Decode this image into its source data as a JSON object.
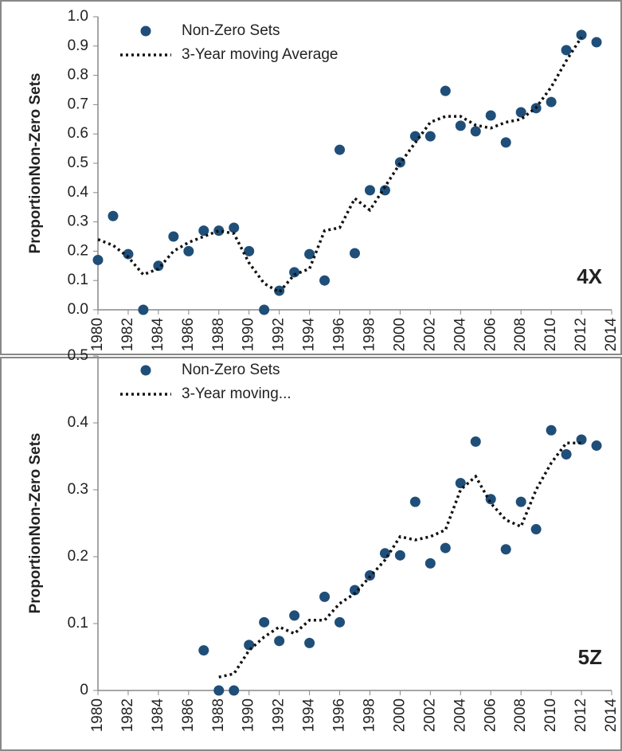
{
  "chart_data": [
    {
      "type": "scatter",
      "ylabel": "ProportionNon-Zero Sets",
      "annotation": "4X",
      "x": [
        1980,
        1981,
        1982,
        1983,
        1984,
        1985,
        1986,
        1987,
        1988,
        1989,
        1990,
        1991,
        1992,
        1993,
        1994,
        1995,
        1996,
        1997,
        1998,
        1999,
        2000,
        2001,
        2002,
        2003,
        2004,
        2005,
        2006,
        2007,
        2008,
        2009,
        2010,
        2011,
        2012,
        2013
      ],
      "xlim": [
        1980,
        2014
      ],
      "xticks": [
        1980,
        1982,
        1984,
        1986,
        1988,
        1990,
        1992,
        1994,
        1996,
        1998,
        2000,
        2002,
        2004,
        2006,
        2008,
        2010,
        2012,
        2014
      ],
      "ylim": [
        0,
        1
      ],
      "yticks": [
        {
          "value": 0,
          "label": "0.0"
        },
        0.1,
        0.2,
        0.3,
        0.4,
        0.5,
        0.6,
        0.7,
        0.8,
        0.9,
        {
          "value": 1,
          "label": "1.0"
        }
      ],
      "grid": false,
      "legend": "top-left",
      "series": [
        {
          "name": "Non-Zero Sets",
          "color": "#1f4e79",
          "mode": "markers",
          "values": [
            0.17,
            0.32,
            0.19,
            0,
            0.15,
            0.25,
            0.2,
            0.27,
            0.27,
            0.28,
            0.2,
            0,
            0.065,
            0.128,
            0.19,
            0.1,
            0.546,
            0.193,
            0.408,
            0.408,
            0.503,
            0.592,
            0.592,
            0.747,
            0.628,
            0.609,
            0.663,
            0.571,
            0.674,
            0.688,
            0.709,
            0.886,
            0.938,
            0.913
          ]
        },
        {
          "name": "3-Year moving Average",
          "color": "#111111",
          "mode": "dotted-line",
          "values": [
            0.24,
            0.22,
            0.18,
            0.12,
            0.14,
            0.2,
            0.23,
            0.25,
            0.27,
            0.26,
            0.16,
            0.09,
            0.06,
            0.12,
            0.14,
            0.27,
            0.28,
            0.38,
            0.34,
            0.42,
            0.5,
            0.57,
            0.64,
            0.66,
            0.66,
            0.63,
            0.62,
            0.64,
            0.65,
            0.69,
            0.76,
            0.85,
            0.93,
            null
          ]
        }
      ]
    },
    {
      "type": "scatter",
      "ylabel": "ProportionNon-Zero Sets",
      "annotation": "5Z",
      "x": [
        1980,
        1981,
        1982,
        1983,
        1984,
        1985,
        1986,
        1987,
        1988,
        1989,
        1990,
        1991,
        1992,
        1993,
        1994,
        1995,
        1996,
        1997,
        1998,
        1999,
        2000,
        2001,
        2002,
        2003,
        2004,
        2005,
        2006,
        2007,
        2008,
        2009,
        2010,
        2011,
        2012,
        2013
      ],
      "xlim": [
        1980,
        2014
      ],
      "xticks": [
        1980,
        1982,
        1984,
        1986,
        1988,
        1990,
        1992,
        1994,
        1996,
        1998,
        2000,
        2002,
        2004,
        2006,
        2008,
        2010,
        2012,
        2014
      ],
      "ylim": [
        0,
        0.5
      ],
      "yticks": [
        0,
        0.1,
        0.2,
        0.3,
        0.4,
        0.5
      ],
      "grid": false,
      "legend": "top-left",
      "series": [
        {
          "name": "Non-Zero Sets",
          "color": "#1f4e79",
          "mode": "markers",
          "values": [
            null,
            null,
            null,
            null,
            null,
            null,
            null,
            0.06,
            0,
            0,
            0.068,
            0.102,
            0.074,
            0.112,
            0.071,
            0.14,
            0.102,
            0.15,
            0.172,
            0.205,
            0.202,
            0.282,
            0.19,
            0.213,
            0.31,
            0.372,
            0.286,
            0.211,
            0.282,
            0.241,
            0.389,
            0.353,
            0.375,
            0.366
          ]
        },
        {
          "name": "3-Year moving...",
          "color": "#111111",
          "mode": "dotted-line",
          "values": [
            null,
            null,
            null,
            null,
            null,
            null,
            null,
            null,
            0.02,
            0.025,
            0.06,
            0.08,
            0.095,
            0.085,
            0.105,
            0.105,
            0.13,
            0.145,
            0.17,
            0.195,
            0.23,
            0.225,
            0.23,
            0.24,
            0.3,
            0.32,
            0.28,
            0.255,
            0.245,
            0.3,
            0.34,
            0.37,
            0.37,
            null
          ]
        }
      ]
    }
  ]
}
